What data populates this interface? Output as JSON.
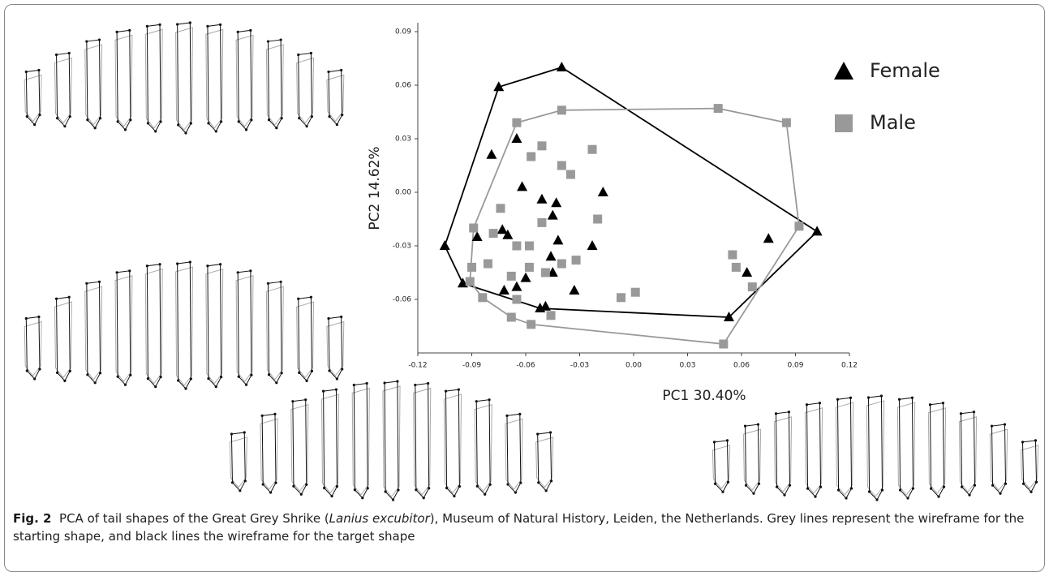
{
  "chart_data": {
    "type": "scatter",
    "x_label": "PC1 30.40%",
    "y_label": "PC2 14.62%",
    "xlim": [
      -0.12,
      0.12
    ],
    "ylim": [
      -0.09,
      0.095
    ],
    "xticks": [
      -0.12,
      -0.09,
      -0.06,
      -0.03,
      {
        "value": 0,
        "label": "0.00"
      },
      0.03,
      0.06,
      0.09,
      0.12
    ],
    "yticks": [
      -0.06,
      -0.03,
      {
        "value": 0,
        "label": "0.00"
      },
      0.03,
      0.06,
      0.09
    ],
    "legend": "upper-right",
    "grid": false,
    "hull": true,
    "series": [
      {
        "name": "Female",
        "color": "#000000",
        "marker": "triangle",
        "x": [
          -0.105,
          -0.095,
          -0.075,
          -0.04,
          0.102,
          0.053,
          -0.079,
          -0.065,
          -0.062,
          -0.087,
          -0.073,
          -0.07,
          -0.051,
          -0.043,
          -0.045,
          -0.042,
          -0.017,
          -0.023,
          -0.046,
          -0.045,
          -0.06,
          -0.065,
          -0.072,
          -0.033,
          -0.052,
          0.063,
          0.075,
          -0.049
        ],
        "values": [
          -0.03,
          -0.051,
          0.059,
          0.07,
          -0.022,
          -0.07,
          0.021,
          0.03,
          0.003,
          -0.025,
          -0.021,
          -0.024,
          -0.004,
          -0.006,
          -0.013,
          -0.027,
          0.0,
          -0.03,
          -0.036,
          -0.045,
          -0.048,
          -0.053,
          -0.055,
          -0.055,
          -0.065,
          -0.045,
          -0.026,
          -0.064
        ]
      },
      {
        "name": "Male",
        "color": "#999999",
        "marker": "square",
        "x": [
          -0.089,
          -0.09,
          -0.091,
          -0.084,
          -0.081,
          -0.065,
          -0.04,
          0.047,
          0.085,
          0.092,
          0.05,
          0.066,
          0.057,
          0.055,
          -0.051,
          -0.057,
          -0.04,
          -0.035,
          -0.023,
          -0.074,
          -0.051,
          -0.02,
          -0.078,
          -0.065,
          -0.058,
          -0.068,
          -0.058,
          -0.04,
          -0.032,
          -0.049,
          -0.065,
          -0.068,
          -0.057,
          -0.046,
          -0.007,
          0.001
        ],
        "values": [
          -0.02,
          -0.042,
          -0.05,
          -0.059,
          -0.04,
          0.039,
          0.046,
          0.047,
          0.039,
          -0.019,
          -0.085,
          -0.053,
          -0.042,
          -0.035,
          0.026,
          0.02,
          0.015,
          0.01,
          0.024,
          -0.009,
          -0.017,
          -0.015,
          -0.023,
          -0.03,
          -0.03,
          -0.047,
          -0.042,
          -0.04,
          -0.038,
          -0.045,
          -0.06,
          -0.07,
          -0.074,
          -0.069,
          -0.059,
          -0.056
        ]
      }
    ]
  },
  "caption": {
    "label": "Fig. 2",
    "text_before": "PCA of tail shapes of the Great Grey Shrike (",
    "species": "Lanius excubitor",
    "text_after": "), Museum of Natural History, Leiden, the Netherlands. Grey lines represent the wireframe for the starting shape, and black lines the wireframe for the target shape"
  }
}
